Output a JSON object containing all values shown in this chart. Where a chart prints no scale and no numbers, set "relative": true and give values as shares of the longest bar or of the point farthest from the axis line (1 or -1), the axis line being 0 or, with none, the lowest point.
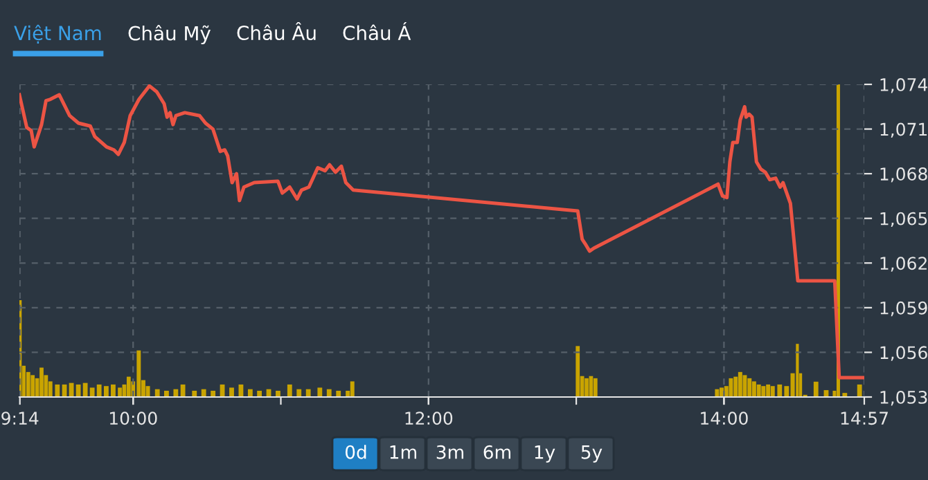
{
  "chart_data": [
    {
      "type": "line",
      "annotations": [
        "Việt Nam",
        "Châu Mỹ",
        "Châu Âu",
        "Châu Á"
      ],
      "x": [
        9.23,
        9.28,
        9.31,
        9.33,
        9.38,
        9.41,
        9.44,
        9.5,
        9.57,
        9.63,
        9.71,
        9.74,
        9.82,
        9.87,
        9.9,
        9.94,
        9.98,
        10.04,
        10.11,
        10.16,
        10.21,
        10.23,
        10.25,
        10.27,
        10.29,
        10.35,
        10.45,
        10.49,
        10.54,
        10.59,
        10.62,
        10.64,
        10.67,
        10.7,
        10.72,
        10.75,
        10.82,
        10.98,
        11.01,
        11.06,
        11.11,
        11.14,
        11.19,
        11.25,
        11.3,
        11.33,
        11.37,
        11.41,
        11.44,
        11.49,
        13.01,
        13.04,
        13.06,
        13.09,
        13.12,
        13.96,
        13.99,
        14.02,
        14.04,
        14.06,
        14.09,
        14.11,
        14.14,
        14.15,
        14.17,
        14.19,
        14.22,
        14.25,
        14.28,
        14.31,
        14.35,
        14.38,
        14.4,
        14.45,
        14.5,
        14.75,
        14.78,
        14.95
      ],
      "series": [
        {
          "color": "#ec5444",
          "values": [
            1073.3,
            1071.1,
            1070.9,
            1069.8,
            1071.3,
            1072.9,
            1073.0,
            1073.3,
            1071.9,
            1071.4,
            1071.2,
            1070.5,
            1069.8,
            1069.6,
            1069.3,
            1070.1,
            1071.9,
            1073.0,
            1073.9,
            1073.5,
            1072.7,
            1071.8,
            1072.1,
            1071.3,
            1071.9,
            1072.1,
            1071.9,
            1071.4,
            1071.0,
            1069.5,
            1069.6,
            1069.2,
            1067.4,
            1068.0,
            1066.2,
            1067.1,
            1067.4,
            1067.5,
            1066.7,
            1067.1,
            1066.3,
            1066.9,
            1067.1,
            1068.4,
            1068.2,
            1068.6,
            1068.1,
            1068.5,
            1067.4,
            1066.9,
            1065.5,
            1063.6,
            1063.3,
            1062.8,
            1063.0,
            1067.3,
            1066.5,
            1066.4,
            1068.8,
            1070.1,
            1070.1,
            1071.6,
            1072.5,
            1071.8,
            1072.0,
            1071.8,
            1068.8,
            1068.3,
            1068.1,
            1067.6,
            1067.7,
            1067.1,
            1067.4,
            1066.0,
            1060.8,
            1060.8,
            1054.3,
            1054.3
          ]
        }
      ],
      "xlim": [
        9.23,
        14.95
      ],
      "xticks": [
        {
          "value": 9.2333,
          "label": "9:14"
        },
        {
          "value": 10,
          "label": "10:00"
        },
        {
          "value": 12,
          "label": "12:00"
        },
        {
          "value": 14,
          "label": "14:00"
        },
        {
          "value": 14.95,
          "label": "14:57"
        }
      ],
      "ylim": [
        1053,
        1074
      ],
      "yticks": [
        {
          "value": 1053,
          "label": "1,053"
        },
        {
          "value": 1056,
          "label": "1,056"
        },
        {
          "value": 1059,
          "label": "1,059"
        },
        {
          "value": 1062,
          "label": "1,062"
        },
        {
          "value": 1065,
          "label": "1,065"
        },
        {
          "value": 1068,
          "label": "1,068"
        },
        {
          "value": 1071,
          "label": "1,071"
        },
        {
          "value": 1074,
          "label": "1,074"
        }
      ],
      "grid": true,
      "line_style": "solid",
      "marker": "none"
    },
    {
      "type": "bar",
      "relative": true,
      "tick_labels": false,
      "color": "#c9a400",
      "annotations": [
        "0d",
        "1m",
        "3m",
        "6m",
        "1y",
        "5y"
      ],
      "x": [
        9.2333,
        9.26,
        9.29,
        9.32,
        9.35,
        9.38,
        9.41,
        9.44,
        9.487,
        9.535,
        9.582,
        9.629,
        9.676,
        9.723,
        9.77,
        9.818,
        9.865,
        9.91,
        9.94,
        9.97,
        10.0,
        10.038,
        10.069,
        10.1,
        10.164,
        10.226,
        10.289,
        10.337,
        10.415,
        10.478,
        10.541,
        10.604,
        10.667,
        10.73,
        10.793,
        10.855,
        10.918,
        10.981,
        11.06,
        11.123,
        11.186,
        11.264,
        11.327,
        11.39,
        11.453,
        11.484,
        13.01,
        13.04,
        13.07,
        13.1,
        13.13,
        13.953,
        13.984,
        14.016,
        14.047,
        14.079,
        14.11,
        14.141,
        14.173,
        14.204,
        14.236,
        14.267,
        14.299,
        14.33,
        14.377,
        14.424,
        14.465,
        14.497,
        14.519,
        14.55,
        14.623,
        14.692,
        14.748,
        14.774,
        14.818,
        14.918
      ],
      "values": [
        0.31,
        0.1,
        0.08,
        0.07,
        0.06,
        0.094,
        0.07,
        0.05,
        0.04,
        0.04,
        0.045,
        0.04,
        0.045,
        0.03,
        0.04,
        0.035,
        0.04,
        0.03,
        0.04,
        0.065,
        0.05,
        0.149,
        0.054,
        0.035,
        0.025,
        0.02,
        0.025,
        0.04,
        0.02,
        0.025,
        0.02,
        0.04,
        0.03,
        0.04,
        0.025,
        0.02,
        0.025,
        0.02,
        0.04,
        0.025,
        0.025,
        0.03,
        0.025,
        0.02,
        0.02,
        0.05,
        0.163,
        0.067,
        0.06,
        0.067,
        0.06,
        0.025,
        0.03,
        0.035,
        0.06,
        0.065,
        0.08,
        0.07,
        0.06,
        0.05,
        0.04,
        0.035,
        0.04,
        0.035,
        0.04,
        0.035,
        0.076,
        0.17,
        0.076,
        0.007,
        0.049,
        0.022,
        0.02,
        1.0,
        0.013,
        0.04
      ],
      "xlim": [
        9.23,
        14.95
      ]
    }
  ]
}
